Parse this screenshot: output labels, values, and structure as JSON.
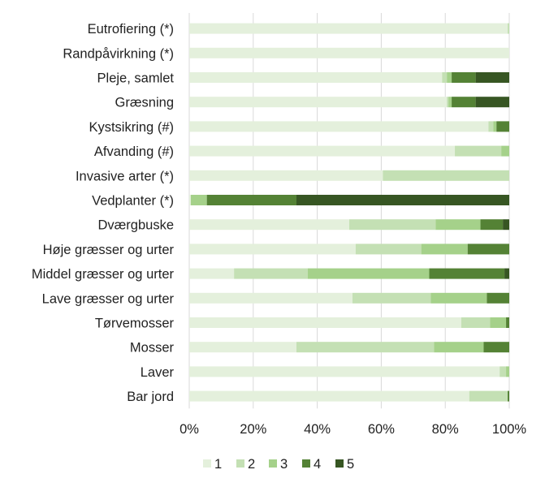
{
  "chart_data": {
    "type": "bar",
    "orientation": "horizontal",
    "stacked": "percent",
    "title": "",
    "xlabel": "",
    "ylabel": "",
    "xlim": [
      0,
      100
    ],
    "x_ticks": [
      "0%",
      "20%",
      "40%",
      "60%",
      "80%",
      "100%"
    ],
    "grid": "vertical",
    "legend": "bottom",
    "categories": [
      "Eutrofiering (*)",
      "Randpåvirkning (*)",
      "Pleje, samlet",
      "Græsning",
      "Kystsikring (#)",
      "Afvanding (#)",
      "Invasive arter (*)",
      "Vedplanter (*)",
      "Dværgbuske",
      "Høje græsser og urter",
      "Middel græsser og urter",
      "Lave græsser og urter",
      "Tørvemosser",
      "Mosser",
      "Laver",
      "Bar jord"
    ],
    "series": [
      {
        "name": "1",
        "color": "#e4f0dc",
        "values": [
          99.5,
          100,
          79,
          80.5,
          93.5,
          83,
          60.5,
          0.5,
          50,
          52,
          14,
          51,
          85,
          33.5,
          97,
          87.5
        ]
      },
      {
        "name": "2",
        "color": "#c4e0b4",
        "values": [
          0.5,
          0,
          1.5,
          0.5,
          1.5,
          14.5,
          39.5,
          0,
          27,
          20.5,
          23,
          24.5,
          9,
          43,
          2,
          12
        ]
      },
      {
        "name": "3",
        "color": "#a5d18a",
        "values": [
          0,
          0,
          1.5,
          1,
          1,
          2.5,
          0,
          5,
          14,
          14.5,
          38,
          17.5,
          5,
          15.5,
          1,
          0
        ]
      },
      {
        "name": "4",
        "color": "#548235",
        "values": [
          0,
          0,
          7.5,
          7.5,
          4,
          0,
          0,
          28,
          7,
          13,
          23.5,
          7,
          1,
          8,
          0,
          0.5
        ]
      },
      {
        "name": "5",
        "color": "#375623",
        "values": [
          0,
          0,
          10.5,
          10.5,
          0,
          0,
          0,
          66.5,
          2,
          0,
          1.5,
          0,
          0,
          0,
          0,
          0
        ]
      }
    ]
  }
}
